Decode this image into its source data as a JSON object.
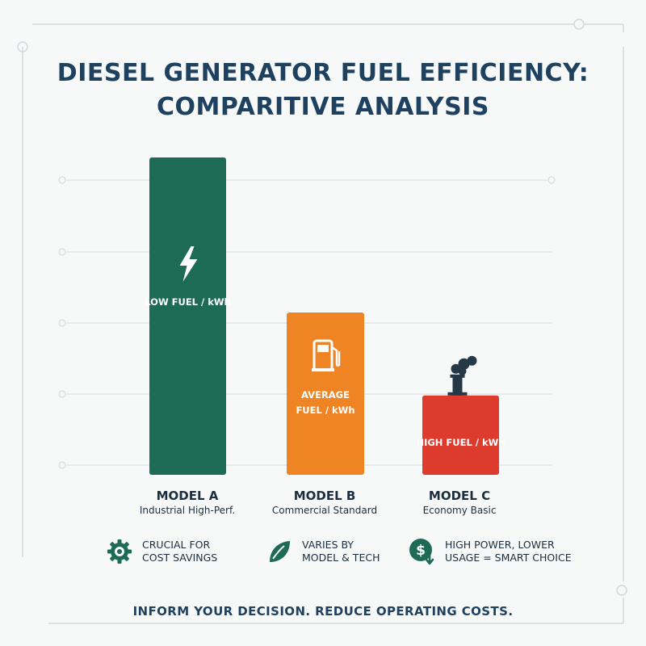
{
  "title_lines": [
    "DIESEL GENERATOR FUEL EFFICIENCY:",
    "COMPARITIVE ANALYSIS"
  ],
  "chart_data": {
    "type": "bar",
    "categories": [
      "MODEL A",
      "MODEL B",
      "MODEL C"
    ],
    "subtitles": [
      "Industrial High-Perf.",
      "Commercial Standard",
      "Economy Basic"
    ],
    "values": [
      4.4,
      2.25,
      1.1
    ],
    "ylim": [
      0,
      4.4
    ],
    "grid": true,
    "bar_labels": [
      [
        "LOW FUEL / kWh"
      ],
      [
        "AVERAGE",
        "FUEL / kWh"
      ],
      [
        "HIGH FUEL / kWh"
      ]
    ],
    "bar_colors": [
      "#1e6b55",
      "#ef8425",
      "#dc3b2e"
    ],
    "bar_icons": [
      "lightning-icon",
      "fuel-pump-icon",
      "smokestack-icon"
    ],
    "xlabel": "",
    "ylabel": ""
  },
  "notes": [
    {
      "icon": "gear-icon",
      "lines": [
        "CRUCIAL FOR",
        "COST SAVINGS"
      ]
    },
    {
      "icon": "leaf-icon",
      "lines": [
        "VARIES BY",
        "MODEL & TECH"
      ]
    },
    {
      "icon": "dollar-down-icon",
      "lines": [
        "HIGH POWER, LOWER",
        "USAGE = SMART CHOICE"
      ]
    }
  ],
  "footer": "INFORM YOUR DECISION. REDUCE OPERATING COSTS.",
  "colors": {
    "title": "#1f4160",
    "green": "#1e6b55",
    "orange": "#ef8425",
    "red": "#dc3b2e"
  }
}
